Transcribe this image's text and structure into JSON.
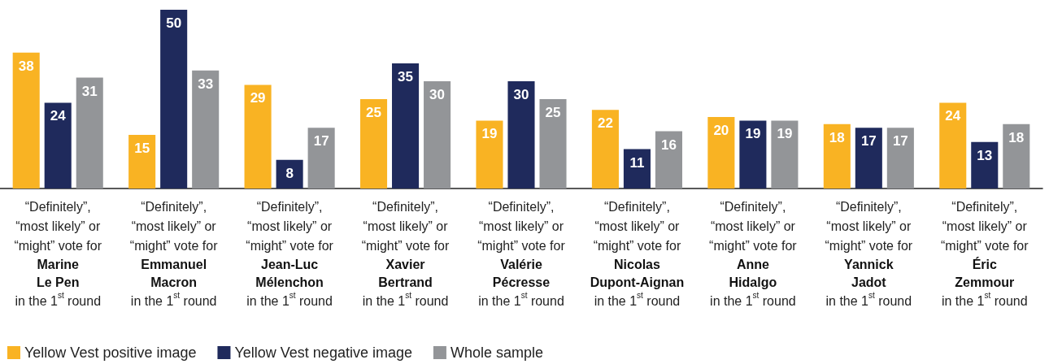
{
  "chart_data": {
    "type": "bar",
    "categories": [
      "“Definitely”,\n“most likely” or\n“might” vote for\nMarine\nLe Pen\nin the 1$^{st}$ round",
      "“Definitely”,\n“most likely” or\n“might” vote for\nEmmanuel\nMacron\nin the 1$^{st}$ round",
      "“Definitely”,\n“most likely” or\n“might” vote for\nJean-Luc\nMélenchon\nin the 1$^{st}$ round",
      "“Definitely”,\n“most likely” or\n“might” vote for\nXavier\nBertrand\nin the 1$^{st}$ round",
      "“Definitely”,\n“most likely” or\n“might” vote for\nValérie\nPécresse\nin the 1$^{st}$ round",
      "“Definitely”,\n“most likely” or\n“might” vote for\nNicolas\nDupont-Aignan\nin the 1$^{st}$ round",
      "“Definitely”,\n“most likely” or\n“might” vote for\nAnne\nHidalgo\nin the 1$^{st}$ round",
      "“Definitely”,\n“most likely” or\n“might” vote for\nYannick\nJadot\nin the 1$^{st}$ round",
      "“Definitely”,\n“most likely” or\n“might” vote for\nÉric\nZemmour\nin the 1$^{st}$ round"
    ],
    "series": [
      {
        "name": "Yellow Vest positive image",
        "color": "#f9b323",
        "values": [
          38,
          15,
          29,
          25,
          19,
          22,
          20,
          18,
          24
        ]
      },
      {
        "name": "Yellow Vest negative image",
        "color": "#1f2a5c",
        "values": [
          24,
          50,
          8,
          35,
          30,
          11,
          19,
          17,
          13
        ]
      },
      {
        "name": "Whole sample",
        "color": "#939598",
        "values": [
          31,
          33,
          17,
          30,
          25,
          16,
          19,
          17,
          18
        ]
      }
    ],
    "data_labels": true,
    "legend": "bottom left",
    "tick_labels": "x"
  }
}
